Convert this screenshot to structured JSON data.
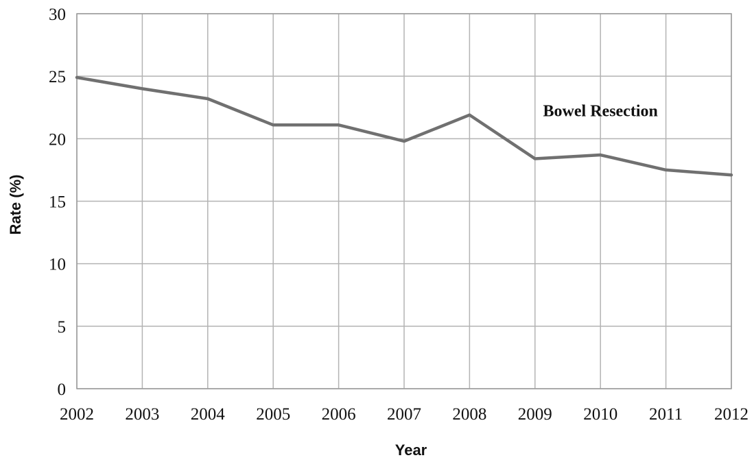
{
  "chart_data": {
    "type": "line",
    "title": "",
    "xlabel": "Year",
    "ylabel": "Rate (%)",
    "categories": [
      "2002",
      "2003",
      "2004",
      "2005",
      "2006",
      "2007",
      "2008",
      "2009",
      "2010",
      "2011",
      "2012"
    ],
    "series": [
      {
        "values": [
          24.9,
          24.0,
          23.2,
          21.1,
          21.1,
          19.8,
          21.9,
          18.4,
          18.7,
          17.5,
          17.1
        ],
        "color": "#707070"
      }
    ],
    "annotations": [
      {
        "text": "Bowel Resection",
        "x": "2010",
        "y": 21.8
      }
    ],
    "ylim": [
      0,
      30
    ],
    "yticks": [
      0,
      5,
      10,
      15,
      20,
      25,
      30
    ],
    "grid": true,
    "legend": "none"
  }
}
